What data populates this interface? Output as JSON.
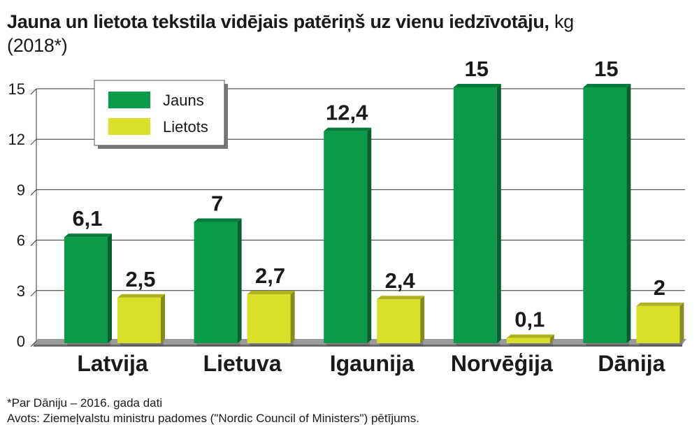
{
  "header": {
    "title": "Jauna un lietota tekstila vidējais patēriņš uz vienu iedzīvotāju,",
    "unit": "kg",
    "year": "(2018*)"
  },
  "chart_data": {
    "type": "bar",
    "categories": [
      "Latvija",
      "Lietuva",
      "Igaunija",
      "Norvēģija",
      "Dānija"
    ],
    "series": [
      {
        "name": "Jauns",
        "values": [
          6.1,
          7,
          12.4,
          15,
          15
        ],
        "labels": [
          "6,1",
          "7",
          "12,4",
          "15",
          "15"
        ],
        "color": "#0a9a4a"
      },
      {
        "name": "Lietots",
        "values": [
          2.5,
          2.7,
          2.4,
          0.1,
          2
        ],
        "labels": [
          "2,5",
          "2,7",
          "2,4",
          "0,1",
          "2"
        ],
        "color": "#d9e029"
      }
    ],
    "yticks": [
      0,
      3,
      6,
      9,
      12,
      15
    ],
    "ylim": [
      0,
      15
    ],
    "grid": true,
    "legend": "top-left"
  },
  "footnotes": {
    "note": "*Par Dāniju – 2016. gada dati",
    "source": "Avots: Ziemeļvalstu ministru padomes (\"Nordic Council of Ministers\") pētījums."
  }
}
